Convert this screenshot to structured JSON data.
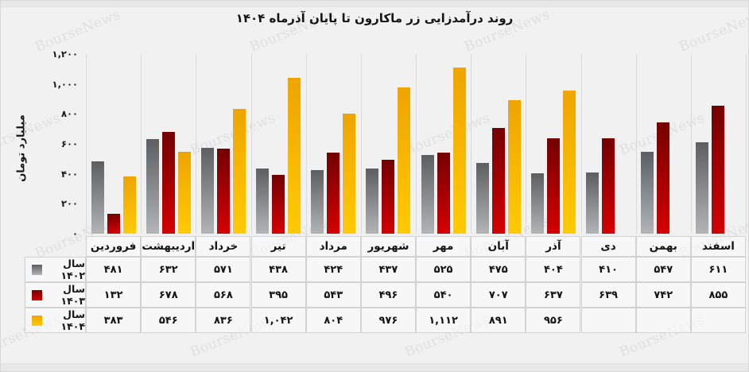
{
  "title": "روند درآمدزایی زر ماکارون تا پایان آذرماه ۱۴۰۴",
  "watermark": "BourseNews",
  "chart": {
    "y_axis_label": "میلیارد تومان",
    "y_ticks": [
      "۱,۲۰۰",
      "۱,۰۰۰",
      "۸۰۰",
      "۶۰۰",
      "۴۰۰",
      "۲۰۰",
      "۰"
    ]
  },
  "table": {
    "rows": [
      {
        "label": "سال ۱۴۰۲",
        "values_fa": [
          "۴۸۱",
          "۶۳۲",
          "۵۷۱",
          "۴۳۸",
          "۴۲۴",
          "۴۳۷",
          "۵۲۵",
          "۴۷۵",
          "۴۰۴",
          "۴۱۰",
          "۵۴۷",
          "۶۱۱"
        ]
      },
      {
        "label": "سال ۱۴۰۳",
        "values_fa": [
          "۱۳۲",
          "۶۷۸",
          "۵۶۸",
          "۳۹۵",
          "۵۴۳",
          "۴۹۶",
          "۵۴۰",
          "۷۰۷",
          "۶۳۷",
          "۶۳۹",
          "۷۴۲",
          "۸۵۵"
        ]
      },
      {
        "label": "سال ۱۴۰۴",
        "values_fa": [
          "۳۸۳",
          "۵۴۶",
          "۸۳۶",
          "۱,۰۴۲",
          "۸۰۴",
          "۹۷۶",
          "۱,۱۱۲",
          "۸۹۱",
          "۹۵۶",
          "",
          "",
          ""
        ]
      }
    ]
  },
  "chart_data": {
    "type": "bar",
    "title": "روند درآمدزایی زر ماکارون تا پایان آذرماه ۱۴۰۴",
    "categories": [
      "فروردین",
      "اردیبهشت",
      "خرداد",
      "تیر",
      "مرداد",
      "شهریور",
      "مهر",
      "آبان",
      "آذر",
      "دی",
      "بهمن",
      "اسفند"
    ],
    "series": [
      {
        "name": "سال ۱۴۰۲",
        "color": "#8a8c8e",
        "values": [
          481,
          632,
          571,
          438,
          424,
          437,
          525,
          475,
          404,
          410,
          547,
          611
        ]
      },
      {
        "name": "سال ۱۴۰۳",
        "color": "#a30001",
        "values": [
          132,
          678,
          568,
          395,
          543,
          496,
          540,
          707,
          637,
          639,
          742,
          855
        ]
      },
      {
        "name": "سال ۱۴۰۴",
        "color": "#ffb703",
        "values": [
          383,
          546,
          836,
          1042,
          804,
          976,
          1112,
          891,
          956,
          null,
          null,
          null
        ]
      }
    ],
    "xlabel": "",
    "ylabel": "میلیارد تومان",
    "ylim": [
      0,
      1200
    ],
    "y_tick_step": 200,
    "grid": "vertical-only",
    "legend_position": "table-left",
    "value_table_shown": true
  }
}
